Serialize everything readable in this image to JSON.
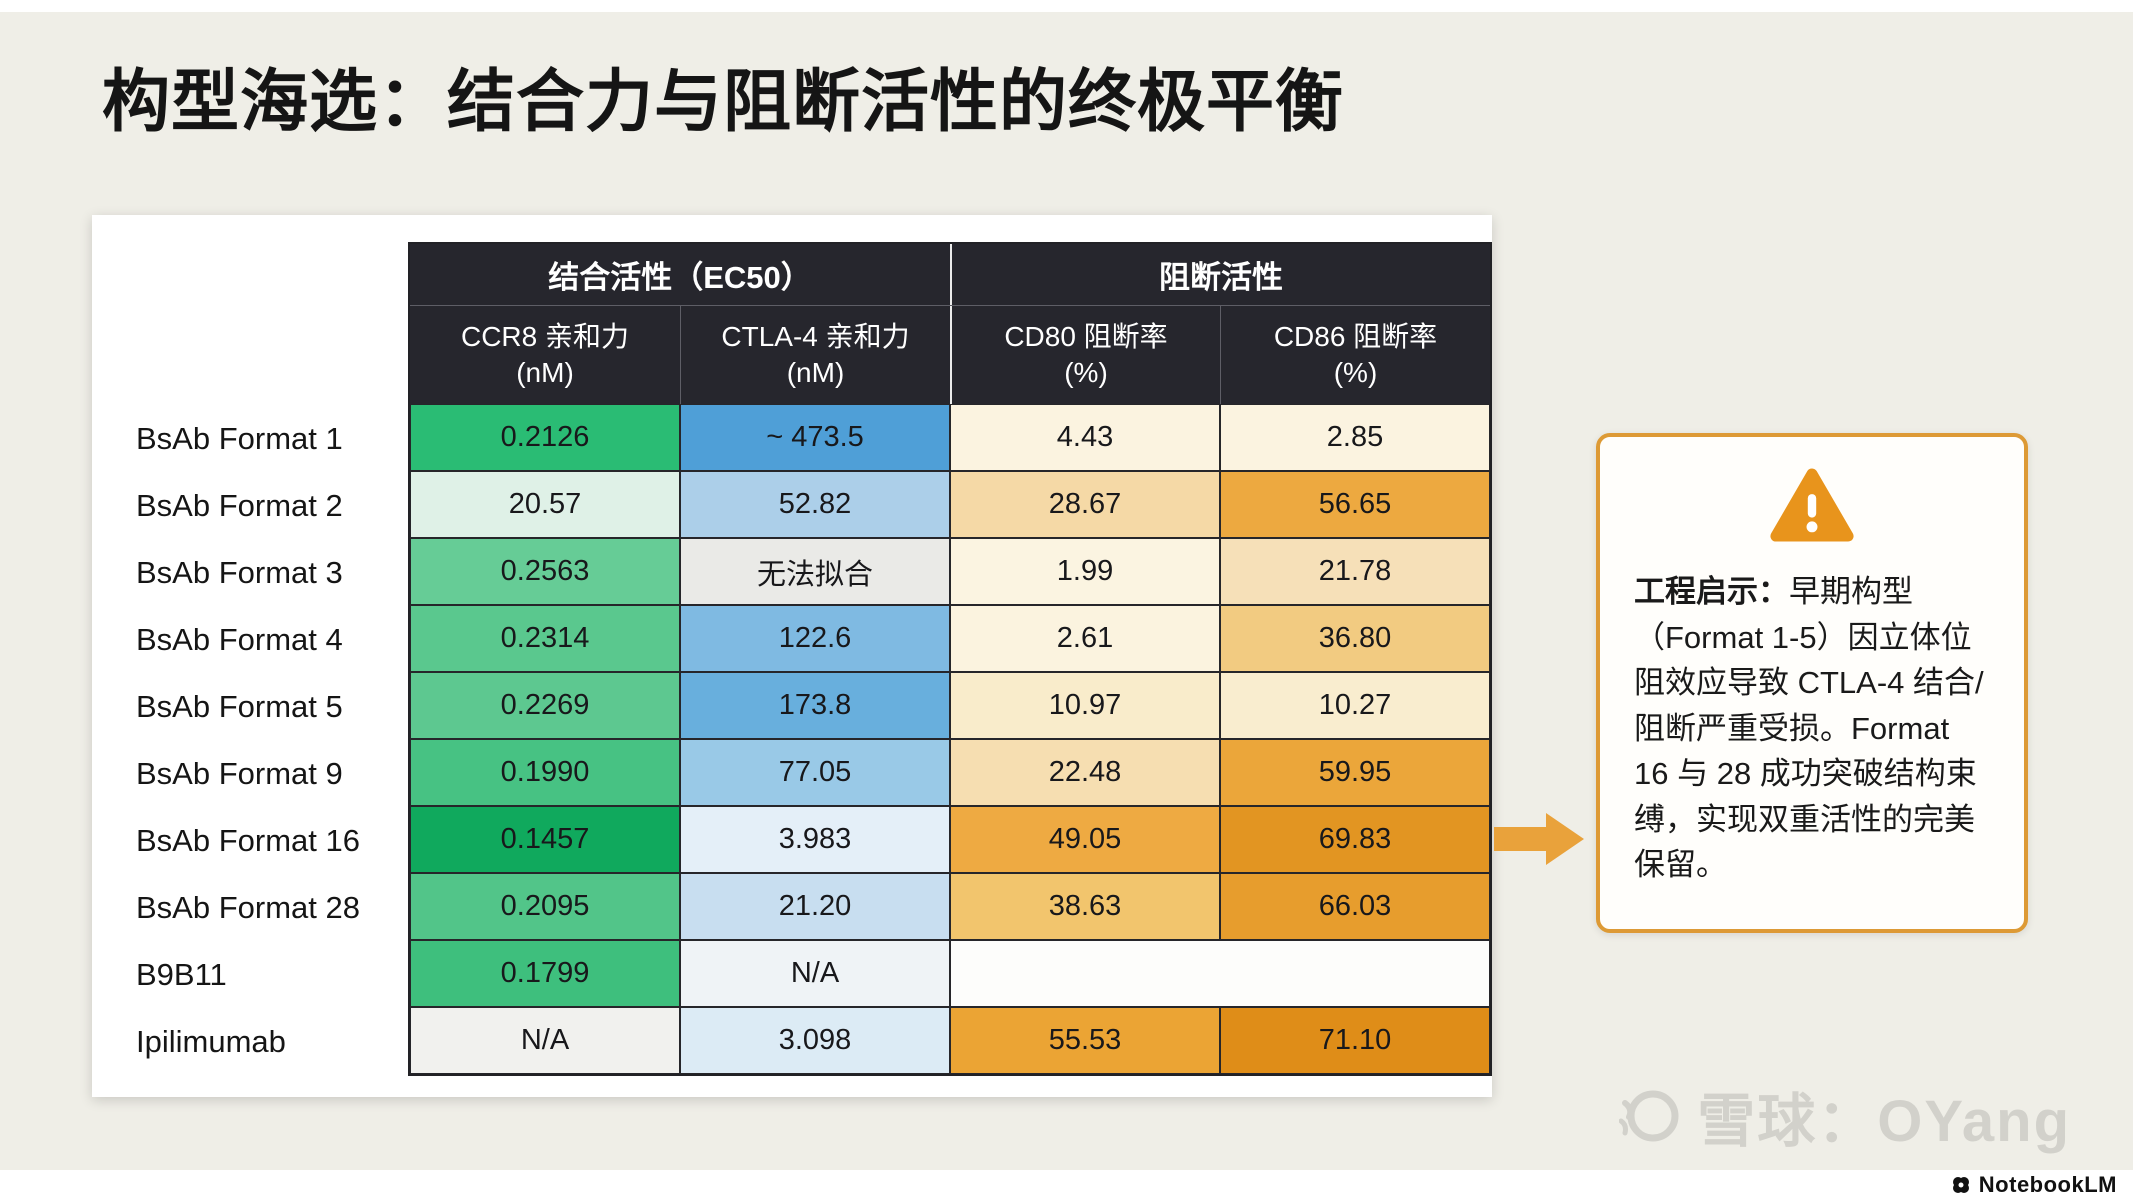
{
  "page": {
    "title": "构型海选：结合力与阻断活性的终极平衡"
  },
  "chart_data": {
    "type": "table",
    "title": "构型海选：结合力与阻断活性的终极平衡",
    "group_headers": [
      {
        "label": "结合活性（EC50）",
        "span": 2
      },
      {
        "label": "阻断活性",
        "span": 2
      }
    ],
    "columns": [
      {
        "name": "CCR8 亲和力",
        "unit": "(nM)"
      },
      {
        "name": "CTLA-4 亲和力",
        "unit": "(nM)"
      },
      {
        "name": "CD80 阻断率",
        "unit": "(%)"
      },
      {
        "name": "CD86 阻断率",
        "unit": "(%)"
      }
    ],
    "rows": [
      {
        "label": "BsAb Format 1",
        "cells": [
          {
            "v": "0.2126",
            "bg": "#2abc74"
          },
          {
            "v": "~ 473.5",
            "bg": "#4f9fd7"
          },
          {
            "v": "4.43",
            "bg": "#fbf3e0"
          },
          {
            "v": "2.85",
            "bg": "#fbf3e0"
          }
        ]
      },
      {
        "label": "BsAb Format 2",
        "cells": [
          {
            "v": "20.57",
            "bg": "#dff1e7"
          },
          {
            "v": "52.82",
            "bg": "#accfe9"
          },
          {
            "v": "28.67",
            "bg": "#f5d9a6"
          },
          {
            "v": "56.65",
            "bg": "#eda940"
          }
        ]
      },
      {
        "label": "BsAb Format 3",
        "cells": [
          {
            "v": "0.2563",
            "bg": "#66cc96"
          },
          {
            "v": "无法拟合",
            "bg": "#eaeae7"
          },
          {
            "v": "1.99",
            "bg": "#fbf4e1"
          },
          {
            "v": "21.78",
            "bg": "#f6e0b8"
          }
        ]
      },
      {
        "label": "BsAb Format 4",
        "cells": [
          {
            "v": "0.2314",
            "bg": "#5ac88e"
          },
          {
            "v": "122.6",
            "bg": "#7fbae2"
          },
          {
            "v": "2.61",
            "bg": "#fbf3df"
          },
          {
            "v": "36.80",
            "bg": "#f2cb81"
          }
        ]
      },
      {
        "label": "BsAb Format 5",
        "cells": [
          {
            "v": "0.2269",
            "bg": "#5dc890"
          },
          {
            "v": "173.8",
            "bg": "#68afdd"
          },
          {
            "v": "10.97",
            "bg": "#f9eccb"
          },
          {
            "v": "10.27",
            "bg": "#f9edcf"
          }
        ]
      },
      {
        "label": "BsAb Format 9",
        "cells": [
          {
            "v": "0.1990",
            "bg": "#47c283"
          },
          {
            "v": "77.05",
            "bg": "#99c9e7"
          },
          {
            "v": "22.48",
            "bg": "#f6deb1"
          },
          {
            "v": "59.95",
            "bg": "#eba63a"
          }
        ]
      },
      {
        "label": "BsAb Format 16",
        "cells": [
          {
            "v": "0.1457",
            "bg": "#10a95d"
          },
          {
            "v": "3.983",
            "bg": "#e4eff8"
          },
          {
            "v": "49.05",
            "bg": "#eeaa42"
          },
          {
            "v": "69.83",
            "bg": "#e29522"
          }
        ]
      },
      {
        "label": "BsAb Format 28",
        "cells": [
          {
            "v": "0.2095",
            "bg": "#52c589"
          },
          {
            "v": "21.20",
            "bg": "#c8def0"
          },
          {
            "v": "38.63",
            "bg": "#f2c56d"
          },
          {
            "v": "66.03",
            "bg": "#e79d2d"
          }
        ]
      },
      {
        "label": "B9B11",
        "cells": [
          {
            "v": "0.1799",
            "bg": "#3ebf7d"
          },
          {
            "v": "N/A",
            "bg": "#eff3f6"
          },
          {
            "v": "",
            "bg": "#fdfdfb",
            "span": 2
          }
        ]
      },
      {
        "label": "Ipilimumab",
        "cells": [
          {
            "v": "N/A",
            "bg": "#f1f1ee"
          },
          {
            "v": "3.098",
            "bg": "#dcebf5"
          },
          {
            "v": "55.53",
            "bg": "#eba434"
          },
          {
            "v": "71.10",
            "bg": "#df8d18"
          }
        ]
      }
    ]
  },
  "callout": {
    "lead": "工程启示：",
    "body": "早期构型（Format 1-5）因立体位阻效应导致 CTLA-4 结合/阻断严重受损。Format 16 与 28 成功突破结构束缚，实现双重活性的完美保留。"
  },
  "watermark": {
    "text": "雪球：OYang"
  },
  "branding": {
    "text": "NotebookLM"
  },
  "colors": {
    "accent_orange": "#dd9a35",
    "header_bg": "#26262d",
    "arrow": "#e9a23b",
    "warning": "#e8941c"
  }
}
